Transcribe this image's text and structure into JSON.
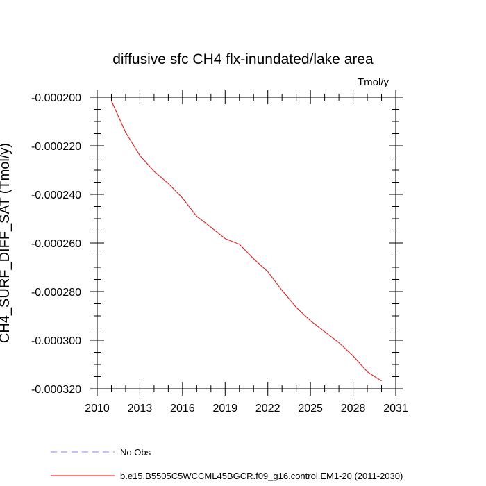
{
  "chart_data": {
    "type": "line",
    "title": "diffusive sfc CH4 flx-inundated/lake area",
    "units": "Tmol/y",
    "ylabel": "CH4_SURF_DIFF_SAT  (Tmol/y)",
    "xlabel": "",
    "xlim": [
      2010,
      2031
    ],
    "ylim": [
      -0.00032,
      -0.0002
    ],
    "x_ticks": [
      2010,
      2013,
      2016,
      2019,
      2022,
      2025,
      2028,
      2031
    ],
    "x_tick_labels": [
      "2010",
      "2013",
      "2016",
      "2019",
      "2022",
      "2025",
      "2028",
      "2031"
    ],
    "y_ticks": [
      -0.0002,
      -0.00022,
      -0.00024,
      -0.00026,
      -0.00028,
      -0.0003,
      -0.00032
    ],
    "y_tick_labels": [
      "-0.000200",
      "-0.000220",
      "-0.000240",
      "-0.000260",
      "-0.000280",
      "-0.000300",
      "-0.000320"
    ],
    "grid": false,
    "legend_position": "bottom-left",
    "series": [
      {
        "name": "No Obs",
        "color": "#8080ff",
        "dash": true,
        "x": [],
        "values": []
      },
      {
        "name": "b.e15.B5505C5WCCML45BGCR.f09_g16.control.EM1-20 (2011-2030)",
        "color": "#ff0000",
        "dash": false,
        "x": [
          2011,
          2012,
          2013,
          2014,
          2015,
          2016,
          2017,
          2018,
          2019,
          2020,
          2021,
          2022,
          2023,
          2024,
          2025,
          2026,
          2027,
          2028,
          2029,
          2030
        ],
        "values": [
          -0.0002015,
          -0.0002145,
          -0.000224,
          -0.0002305,
          -0.0002355,
          -0.0002415,
          -0.000249,
          -0.0002535,
          -0.0002582,
          -0.0002605,
          -0.0002665,
          -0.0002718,
          -0.0002795,
          -0.0002865,
          -0.000292,
          -0.0002965,
          -0.000301,
          -0.0003065,
          -0.000313,
          -0.0003168
        ]
      }
    ]
  }
}
